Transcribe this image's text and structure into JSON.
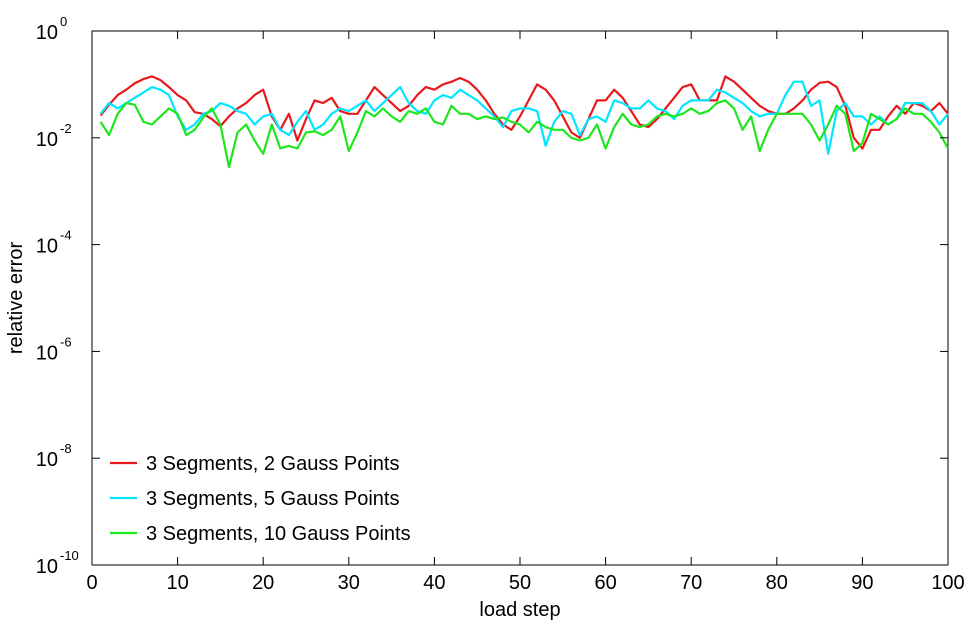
{
  "chart_data": {
    "type": "line",
    "xlabel": "load step",
    "ylabel": "relative error",
    "xlim": [
      0,
      100
    ],
    "ylim_log10": [
      -10,
      0
    ],
    "yscale": "log",
    "x_ticks": [
      0,
      10,
      20,
      30,
      40,
      50,
      60,
      70,
      80,
      90,
      100
    ],
    "y_ticks": [
      {
        "base": "10",
        "exp": "0",
        "log10": 0
      },
      {
        "base": "10",
        "exp": "-2",
        "log10": -2
      },
      {
        "base": "10",
        "exp": "-4",
        "log10": -4
      },
      {
        "base": "10",
        "exp": "-6",
        "log10": -6
      },
      {
        "base": "10",
        "exp": "-8",
        "log10": -8
      },
      {
        "base": "10",
        "exp": "-10",
        "log10": -10
      }
    ],
    "grid": false,
    "legend_position": "bottom-left",
    "x": [
      1,
      2,
      3,
      4,
      5,
      6,
      7,
      8,
      9,
      10,
      11,
      12,
      13,
      14,
      15,
      16,
      17,
      18,
      19,
      20,
      21,
      22,
      23,
      24,
      25,
      26,
      27,
      28,
      29,
      30,
      31,
      32,
      33,
      34,
      35,
      36,
      37,
      38,
      39,
      40,
      41,
      42,
      43,
      44,
      45,
      46,
      47,
      48,
      49,
      50,
      51,
      52,
      53,
      54,
      55,
      56,
      57,
      58,
      59,
      60,
      61,
      62,
      63,
      64,
      65,
      66,
      67,
      68,
      69,
      70,
      71,
      72,
      73,
      74,
      75,
      76,
      77,
      78,
      79,
      80,
      81,
      82,
      83,
      84,
      85,
      86,
      87,
      88,
      89,
      90,
      91,
      92,
      93,
      94,
      95,
      96,
      97,
      98,
      99,
      100
    ],
    "series": [
      {
        "name": "3 Segments, 2 Gauss Points",
        "color": "#e8191c",
        "values_log10": [
          -1.58,
          -1.38,
          -1.2,
          -1.1,
          -0.98,
          -0.9,
          -0.85,
          -0.92,
          -1.05,
          -1.2,
          -1.3,
          -1.52,
          -1.55,
          -1.65,
          -1.78,
          -1.6,
          -1.45,
          -1.35,
          -1.2,
          -1.1,
          -1.6,
          -1.85,
          -1.55,
          -2.05,
          -1.65,
          -1.3,
          -1.35,
          -1.25,
          -1.5,
          -1.55,
          -1.55,
          -1.3,
          -1.05,
          -1.2,
          -1.35,
          -1.5,
          -1.4,
          -1.2,
          -1.05,
          -1.1,
          -1.0,
          -0.95,
          -0.88,
          -0.95,
          -1.1,
          -1.3,
          -1.55,
          -1.75,
          -1.85,
          -1.6,
          -1.3,
          -1.0,
          -1.1,
          -1.3,
          -1.6,
          -1.9,
          -2.0,
          -1.65,
          -1.3,
          -1.3,
          -1.1,
          -1.25,
          -1.5,
          -1.75,
          -1.8,
          -1.65,
          -1.45,
          -1.25,
          -1.05,
          -1.0,
          -1.3,
          -1.3,
          -1.3,
          -0.85,
          -0.95,
          -1.1,
          -1.25,
          -1.4,
          -1.5,
          -1.55,
          -1.55,
          -1.45,
          -1.3,
          -1.1,
          -0.97,
          -0.95,
          -1.05,
          -1.4,
          -2.0,
          -2.2,
          -1.85,
          -1.85,
          -1.6,
          -1.4,
          -1.55,
          -1.35,
          -1.4,
          -1.5,
          -1.35,
          -1.55
        ]
      },
      {
        "name": "3 Segments, 5 Gauss Points",
        "color": "#00e6ff",
        "values_log10": [
          -1.55,
          -1.35,
          -1.45,
          -1.35,
          -1.25,
          -1.15,
          -1.05,
          -1.1,
          -1.2,
          -1.6,
          -1.85,
          -1.75,
          -1.55,
          -1.5,
          -1.35,
          -1.4,
          -1.5,
          -1.55,
          -1.75,
          -1.6,
          -1.55,
          -1.85,
          -1.95,
          -1.7,
          -1.5,
          -1.85,
          -1.75,
          -1.55,
          -1.45,
          -1.5,
          -1.4,
          -1.3,
          -1.5,
          -1.35,
          -1.2,
          -1.05,
          -1.35,
          -1.5,
          -1.55,
          -1.3,
          -1.2,
          -1.25,
          -1.1,
          -1.2,
          -1.3,
          -1.45,
          -1.6,
          -1.8,
          -1.5,
          -1.45,
          -1.45,
          -1.5,
          -2.15,
          -1.7,
          -1.5,
          -1.55,
          -1.95,
          -1.65,
          -1.6,
          -1.7,
          -1.3,
          -1.35,
          -1.45,
          -1.45,
          -1.3,
          -1.45,
          -1.5,
          -1.65,
          -1.4,
          -1.3,
          -1.3,
          -1.3,
          -1.1,
          -1.15,
          -1.25,
          -1.35,
          -1.5,
          -1.6,
          -1.55,
          -1.55,
          -1.2,
          -0.95,
          -0.95,
          -1.4,
          -1.3,
          -2.3,
          -1.5,
          -1.35,
          -1.6,
          -1.6,
          -1.75,
          -1.6,
          -1.75,
          -1.65,
          -1.35,
          -1.35,
          -1.35,
          -1.5,
          -1.75,
          -1.55
        ]
      },
      {
        "name": "3 Segments, 10 Gauss Points",
        "color": "#1ee61e",
        "values_log10": [
          -1.7,
          -1.95,
          -1.55,
          -1.35,
          -1.38,
          -1.7,
          -1.75,
          -1.6,
          -1.45,
          -1.55,
          -1.95,
          -1.85,
          -1.62,
          -1.45,
          -1.75,
          -2.55,
          -1.9,
          -1.75,
          -2.05,
          -2.3,
          -1.75,
          -2.2,
          -2.15,
          -2.2,
          -1.9,
          -1.88,
          -1.95,
          -1.85,
          -1.6,
          -2.25,
          -1.9,
          -1.5,
          -1.6,
          -1.45,
          -1.6,
          -1.7,
          -1.5,
          -1.55,
          -1.45,
          -1.7,
          -1.75,
          -1.4,
          -1.55,
          -1.55,
          -1.65,
          -1.6,
          -1.65,
          -1.62,
          -1.7,
          -1.75,
          -1.9,
          -1.7,
          -1.8,
          -1.85,
          -1.85,
          -2.0,
          -2.05,
          -2.0,
          -1.75,
          -2.2,
          -1.8,
          -1.55,
          -1.75,
          -1.8,
          -1.75,
          -1.6,
          -1.55,
          -1.6,
          -1.55,
          -1.45,
          -1.55,
          -1.5,
          -1.35,
          -1.3,
          -1.45,
          -1.85,
          -1.6,
          -2.25,
          -1.85,
          -1.55,
          -1.55,
          -1.55,
          -1.55,
          -1.75,
          -2.05,
          -1.75,
          -1.4,
          -1.55,
          -2.25,
          -2.1,
          -1.55,
          -1.65,
          -1.75,
          -1.65,
          -1.45,
          -1.55,
          -1.55,
          -1.7,
          -1.9,
          -2.2
        ]
      }
    ]
  }
}
